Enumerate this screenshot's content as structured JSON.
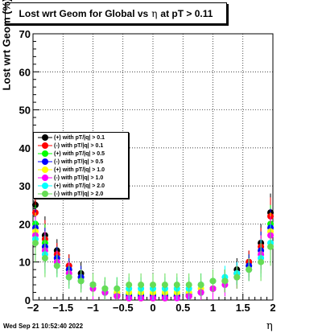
{
  "chart_data": {
    "type": "scatter",
    "title_parts": [
      "Lost wrt Geom for Global vs",
      "η",
      "at pT > 0.11"
    ],
    "xlabel": "η",
    "ylabel": "Lost wrt Geom (%)",
    "xlim": [
      -2,
      2
    ],
    "ylim": [
      0,
      70
    ],
    "x_ticks": [
      "−2",
      "−1.5",
      "−1",
      "−0.5",
      "0",
      "0.5",
      "1",
      "1.5",
      "2"
    ],
    "y_ticks": [
      "0",
      "10",
      "20",
      "30",
      "40",
      "50",
      "60",
      "70"
    ],
    "grid": true,
    "legend_position": "center-left",
    "series": [
      {
        "name": "(+) with pT/|q| > 0.1",
        "color": "#000000",
        "x": [
          -1.96,
          -1.8,
          -1.6,
          -1.4,
          -1.2,
          -1.0,
          -0.8,
          -0.6,
          -0.4,
          -0.2,
          0.0,
          0.2,
          0.4,
          0.6,
          0.8,
          1.0,
          1.2,
          1.4,
          1.6,
          1.8,
          1.96
        ],
        "y": [
          25,
          17,
          13,
          9,
          7,
          4,
          2,
          1,
          0.5,
          0.5,
          0.5,
          0.5,
          1,
          1,
          2,
          3,
          5,
          8,
          10,
          15,
          23
        ]
      },
      {
        "name": "(-) with pT/|q| > 0.1",
        "color": "#ff0000",
        "x": [
          -1.96,
          -1.8,
          -1.6,
          -1.4,
          -1.2,
          -1.0,
          -0.8,
          -0.6,
          -0.4,
          -0.2,
          0.0,
          0.2,
          0.4,
          0.6,
          0.8,
          1.0,
          1.2,
          1.4,
          1.6,
          1.8,
          1.96
        ],
        "y": [
          23,
          16,
          12,
          9,
          6,
          4,
          2,
          1,
          0.5,
          0.5,
          0.5,
          0.5,
          1,
          1,
          2,
          3,
          5,
          7,
          10,
          14,
          22
        ]
      },
      {
        "name": "(+) with pT/|q| > 0.5",
        "color": "#00ff00",
        "x": [
          -1.96,
          -1.8,
          -1.6,
          -1.4,
          -1.2,
          -1.0,
          -0.8,
          -0.6,
          -0.4,
          -0.2,
          0.0,
          0.2,
          0.4,
          0.6,
          0.8,
          1.0,
          1.2,
          1.4,
          1.6,
          1.8,
          1.96
        ],
        "y": [
          20,
          15,
          11,
          8,
          6,
          4,
          2,
          2,
          1.5,
          1.5,
          1.5,
          1.5,
          1.5,
          2,
          2,
          3,
          5,
          7,
          9,
          13,
          20
        ]
      },
      {
        "name": "(-) with pT/|q| > 0.5",
        "color": "#0000ff",
        "x": [
          -1.96,
          -1.8,
          -1.6,
          -1.4,
          -1.2,
          -1.0,
          -0.8,
          -0.6,
          -0.4,
          -0.2,
          0.0,
          0.2,
          0.4,
          0.6,
          0.8,
          1.0,
          1.2,
          1.4,
          1.6,
          1.8,
          1.96
        ],
        "y": [
          19,
          14,
          11,
          8,
          6,
          4,
          2,
          1.5,
          1,
          1,
          1,
          1,
          1,
          1.5,
          2,
          3,
          5,
          7,
          9,
          13,
          19
        ]
      },
      {
        "name": "(+) with pT/|q| > 1.0",
        "color": "#ffff00",
        "x": [
          -1.96,
          -1.8,
          -1.6,
          -1.4,
          -1.2,
          -1.0,
          -0.8,
          -0.6,
          -0.4,
          -0.2,
          0.0,
          0.2,
          0.4,
          0.6,
          0.8,
          1.0,
          1.2,
          1.4,
          1.6,
          1.8,
          1.96
        ],
        "y": [
          18,
          13,
          10,
          7,
          5,
          4,
          3,
          2,
          2,
          2,
          2,
          2,
          2,
          2,
          3,
          3,
          5,
          6,
          8,
          12,
          18
        ]
      },
      {
        "name": "(-) with pT/|q| > 1.0",
        "color": "#ff00ff",
        "x": [
          -1.96,
          -1.8,
          -1.6,
          -1.4,
          -1.2,
          -1.0,
          -0.8,
          -0.6,
          -0.4,
          -0.2,
          0.0,
          0.2,
          0.4,
          0.6,
          0.8,
          1.0,
          1.2,
          1.4,
          1.6,
          1.8,
          1.96
        ],
        "y": [
          17,
          13,
          10,
          7,
          5,
          3,
          2,
          1,
          0.5,
          0.5,
          0.5,
          0.5,
          0.5,
          1,
          2,
          3,
          4,
          6,
          8,
          12,
          17
        ]
      },
      {
        "name": "(+) with pT/|q| > 2.0",
        "color": "#00ffff",
        "x": [
          -1.96,
          -1.8,
          -1.6,
          -1.4,
          -1.2,
          -1.0,
          -0.8,
          -0.6,
          -0.4,
          -0.2,
          0.0,
          0.2,
          0.4,
          0.6,
          0.8,
          1.0,
          1.2,
          1.4,
          1.6,
          1.8,
          1.96
        ],
        "y": [
          16,
          12,
          9,
          6,
          5,
          4,
          3,
          3,
          3,
          3,
          3,
          3,
          3,
          3,
          4,
          5,
          6,
          7,
          8,
          11,
          15
        ]
      },
      {
        "name": "(-) with pT/|q| > 2.0",
        "color": "#66dd55",
        "x": [
          -1.96,
          -1.8,
          -1.6,
          -1.4,
          -1.2,
          -1.0,
          -0.8,
          -0.6,
          -0.4,
          -0.2,
          0.0,
          0.2,
          0.4,
          0.6,
          0.8,
          1.0,
          1.2,
          1.4,
          1.6,
          1.8,
          1.96
        ],
        "y": [
          15,
          11,
          9,
          6,
          5,
          4,
          3,
          3,
          4,
          4,
          4,
          4,
          4,
          4,
          4,
          5,
          5,
          6,
          8,
          10,
          14
        ]
      }
    ]
  },
  "footer_timestamp": "Wed Sep 21 10:52:40 2022"
}
